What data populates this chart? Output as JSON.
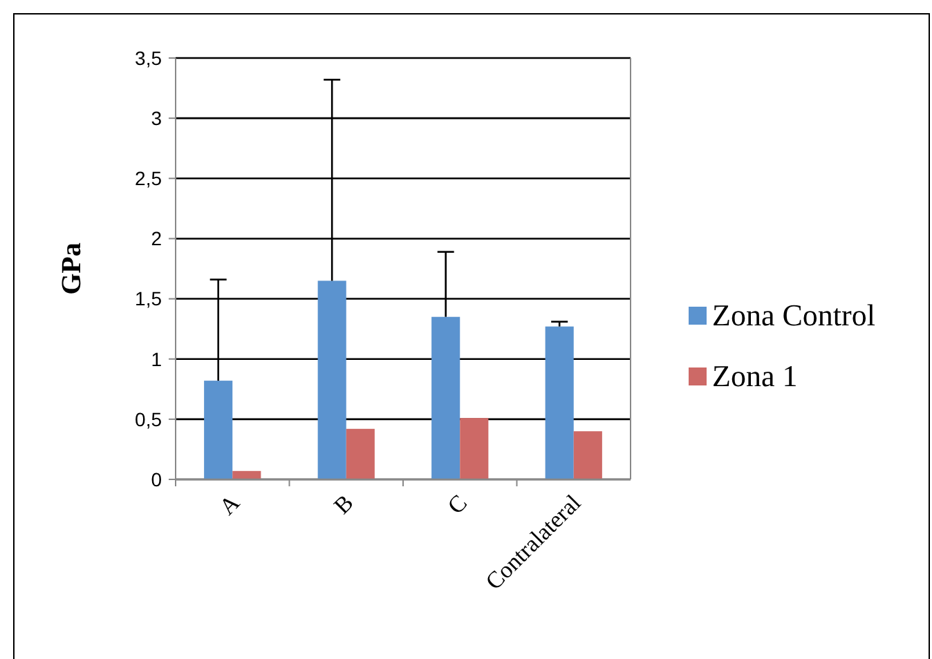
{
  "chart_data": {
    "type": "bar",
    "ylabel": "GPa",
    "categories": [
      "A",
      "B",
      "C",
      "Contralateral"
    ],
    "series": [
      {
        "name": "Zona Control",
        "color": "#5b93cf",
        "values": [
          0.82,
          1.65,
          1.35,
          1.27
        ],
        "errors": [
          [
            0.82,
            1.66
          ],
          [
            1.65,
            3.32
          ],
          [
            1.35,
            1.89
          ],
          [
            1.27,
            1.31
          ]
        ]
      },
      {
        "name": "Zona 1",
        "color": "#cd6966",
        "values": [
          0.07,
          0.42,
          0.51,
          0.4
        ]
      }
    ],
    "ylim": [
      0,
      3.5
    ],
    "yticks": [
      0,
      {
        "value": 0.5,
        "label": "0,5"
      },
      1,
      {
        "value": 1.5,
        "label": "1,5"
      },
      2,
      {
        "value": 2.5,
        "label": "2,5"
      },
      3,
      {
        "value": 3.5,
        "label": "3,5"
      }
    ],
    "grid": "y",
    "legend": "right"
  }
}
